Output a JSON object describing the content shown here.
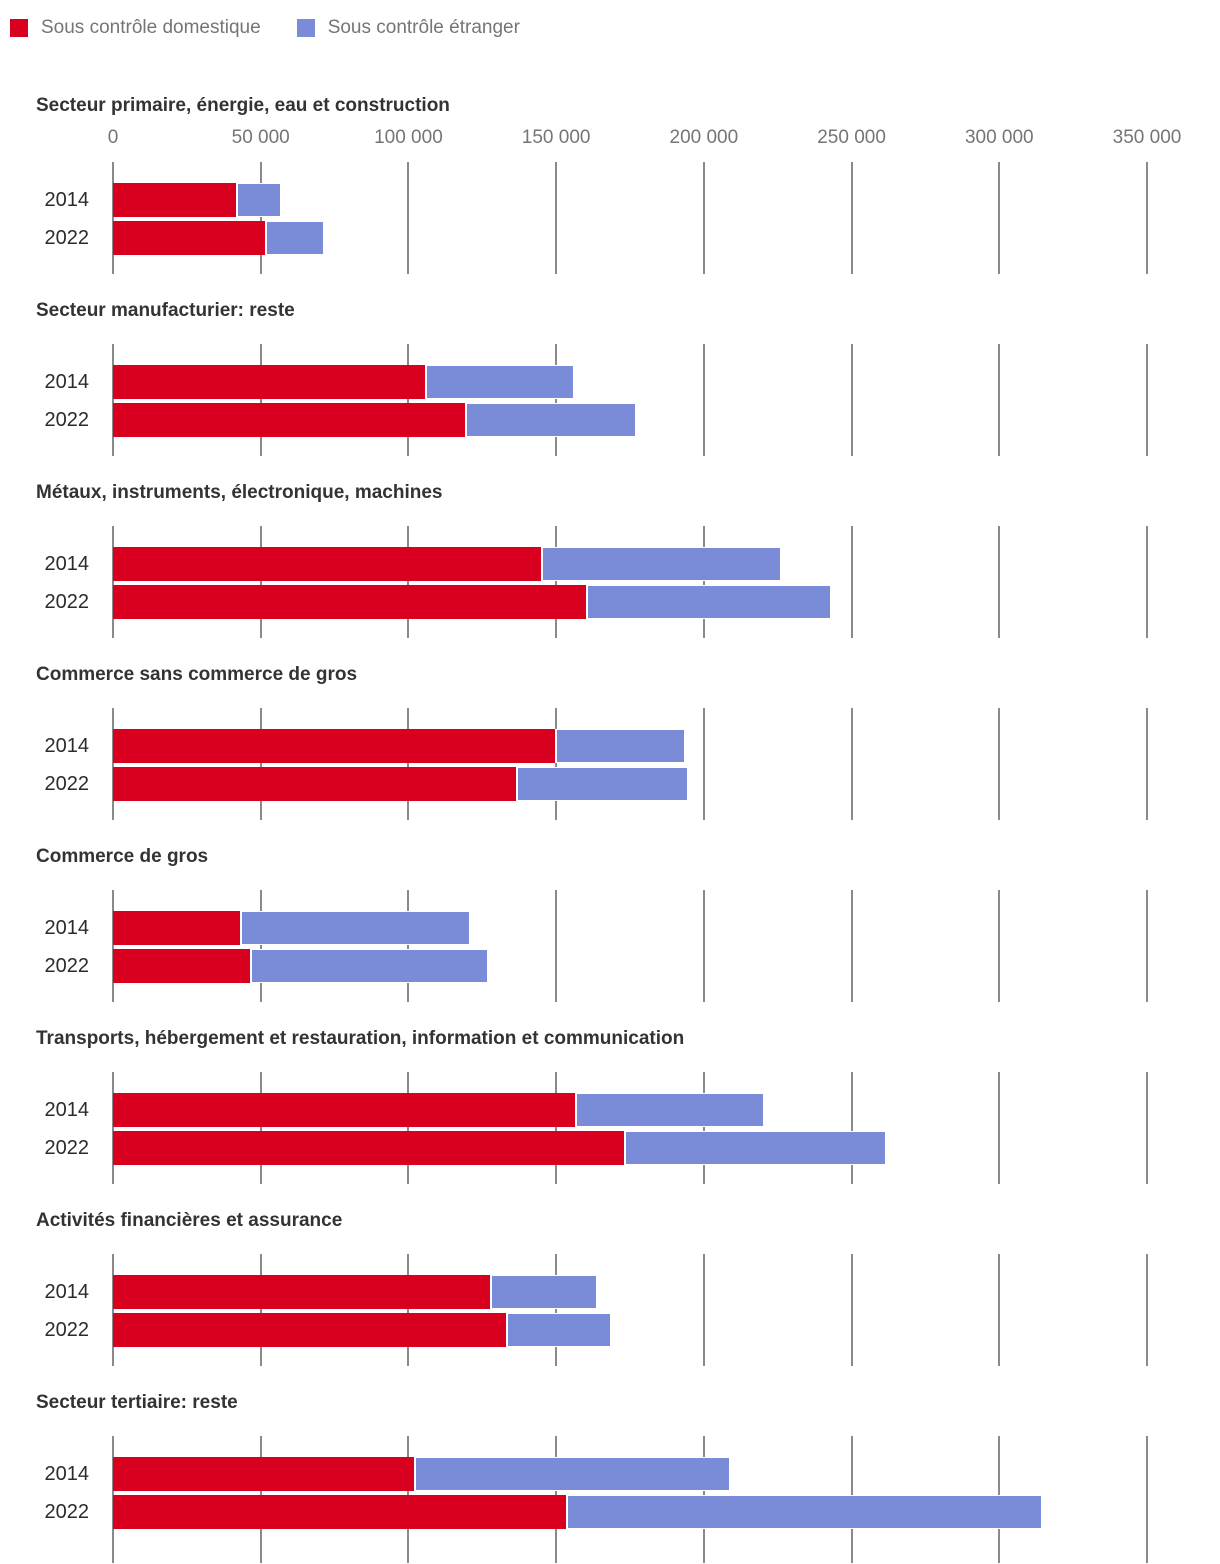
{
  "legend": {
    "items": [
      {
        "label": "Sous contrôle domestique",
        "color": "#d8001e"
      },
      {
        "label": "Sous contrôle étranger",
        "color": "#7a8cd7"
      }
    ]
  },
  "colors": {
    "domestique": "#d8001e",
    "etranger": "#7a8cd7",
    "gridline": "#8a8a8a",
    "axis_text": "#757575",
    "title_text": "#333333",
    "year_text": "#2b2b2b"
  },
  "chart_data": {
    "type": "bar",
    "orientation": "horizontal",
    "stacked": true,
    "grid": true,
    "legend_position": "top",
    "series_names": [
      "Sous contrôle domestique",
      "Sous contrôle étranger"
    ],
    "xlim": [
      0,
      350000
    ],
    "x_ticks": [
      0,
      50000,
      100000,
      150000,
      200000,
      250000,
      300000,
      350000
    ],
    "x_tick_labels": [
      "0",
      "50 000",
      "100 000",
      "150 000",
      "200 000",
      "250 000",
      "300 000",
      "350 000"
    ],
    "sections": [
      {
        "title": "Secteur primaire, énergie, eau et construction",
        "rows": [
          {
            "year": "2014",
            "domestique": 41500,
            "etranger": 15500
          },
          {
            "year": "2022",
            "domestique": 51500,
            "etranger": 20000
          }
        ]
      },
      {
        "title": "Secteur manufacturier: reste",
        "rows": [
          {
            "year": "2014",
            "domestique": 105500,
            "etranger": 50500
          },
          {
            "year": "2022",
            "domestique": 119000,
            "etranger": 58000
          }
        ]
      },
      {
        "title": "Métaux, instruments, électronique, machines",
        "rows": [
          {
            "year": "2014",
            "domestique": 145000,
            "etranger": 81000
          },
          {
            "year": "2022",
            "domestique": 160000,
            "etranger": 83000
          }
        ]
      },
      {
        "title": "Commerce sans commerce de gros",
        "rows": [
          {
            "year": "2014",
            "domestique": 149500,
            "etranger": 44000
          },
          {
            "year": "2022",
            "domestique": 136500,
            "etranger": 58000
          }
        ]
      },
      {
        "title": "Commerce de gros",
        "rows": [
          {
            "year": "2014",
            "domestique": 43000,
            "etranger": 78000
          },
          {
            "year": "2022",
            "domestique": 46500,
            "etranger": 80500
          }
        ]
      },
      {
        "title": "Transports, hébergement et restauration, information et communication",
        "rows": [
          {
            "year": "2014",
            "domestique": 156500,
            "etranger": 64000
          },
          {
            "year": "2022",
            "domestique": 173000,
            "etranger": 88500
          }
        ]
      },
      {
        "title": "Activités financières et assurance",
        "rows": [
          {
            "year": "2014",
            "domestique": 127500,
            "etranger": 36500
          },
          {
            "year": "2022",
            "domestique": 133000,
            "etranger": 35500
          }
        ]
      },
      {
        "title": "Secteur tertiaire: reste",
        "rows": [
          {
            "year": "2014",
            "domestique": 102000,
            "etranger": 107000
          },
          {
            "year": "2022",
            "domestique": 153500,
            "etranger": 161000
          }
        ]
      }
    ]
  }
}
